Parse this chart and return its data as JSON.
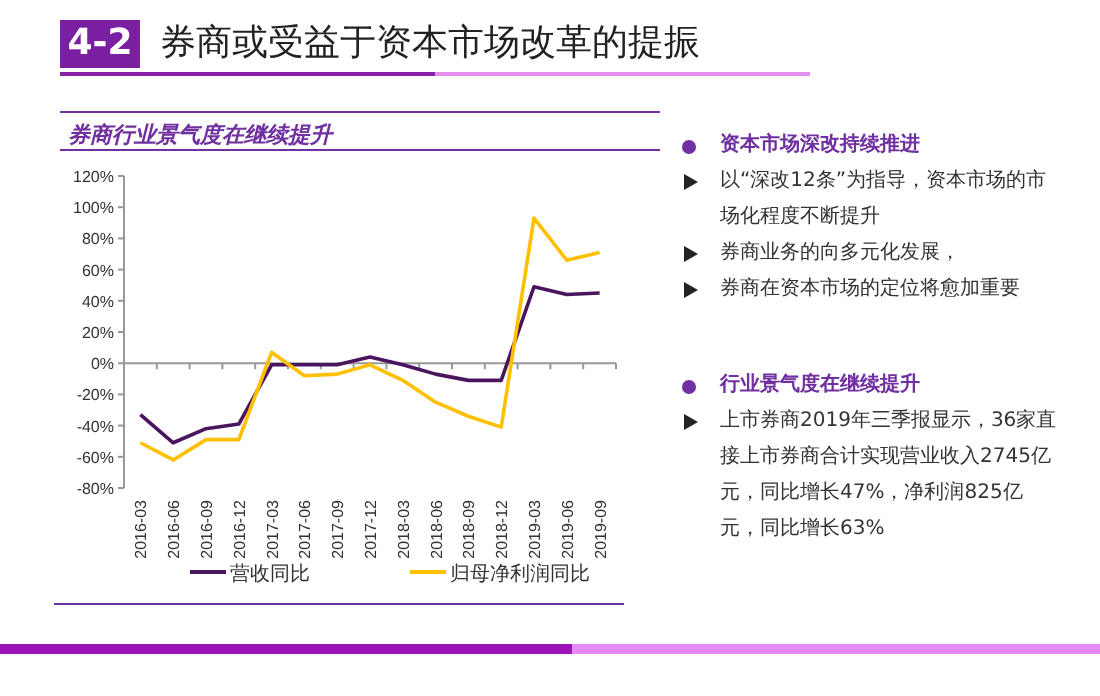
{
  "chart_data": [
    {
      "type": "other",
      "title": "券商或受益于资本市场改革的提振",
      "annotations": [
        "4-2"
      ]
    },
    {
      "type": "line",
      "title": "券商行业景气度在继续提升",
      "categories": [
        "2016-03",
        "2016-06",
        "2016-09",
        "2016-12",
        "2017-03",
        "2017-06",
        "2017-09",
        "2017-12",
        "2018-03",
        "2018-06",
        "2018-09",
        "2018-12",
        "2019-03",
        "2019-06",
        "2019-09"
      ],
      "series": [
        {
          "name": "营收同比",
          "color": "#4b145f",
          "values": [
            -33,
            -51,
            -42,
            -39,
            -1,
            -1,
            -1,
            4,
            -1,
            -7,
            -11,
            -11,
            49,
            44,
            45
          ]
        },
        {
          "name": "归母净利润同比",
          "color": "#ffc000",
          "values": [
            -51,
            -62,
            -49,
            -49,
            7,
            -8,
            -7,
            -1,
            -11,
            -25,
            -34,
            -41,
            93,
            66,
            71
          ]
        }
      ],
      "ylim": [
        -80,
        120
      ],
      "yticks": [
        {
          "value": -80,
          "label": "-80%"
        },
        {
          "value": -60,
          "label": "-60%"
        },
        {
          "value": -40,
          "label": "-40%"
        },
        {
          "value": -20,
          "label": "-20%"
        },
        {
          "value": 0,
          "label": "0%"
        },
        {
          "value": 20,
          "label": "20%"
        },
        {
          "value": 40,
          "label": "40%"
        },
        {
          "value": 60,
          "label": "60%"
        },
        {
          "value": 80,
          "label": "80%"
        },
        {
          "value": 100,
          "label": "100%"
        },
        {
          "value": 120,
          "label": "120%"
        }
      ],
      "legend": "bottom",
      "marker": "none",
      "line_style": "solid"
    },
    {
      "type": "other",
      "title": "资本市场深改持续推进",
      "annotations": [
        "以“深改12条”为指导，资本市场的市场化程度不断提升",
        "券商业务的向多元化发展，",
        "券商在资本市场的定位将愈加重要"
      ]
    },
    {
      "type": "other",
      "title": "行业景气度在继续提升",
      "annotations": [
        "上市券商2019年三季报显示，36家直接上市券商合计实现营业收入2745亿元，同比增长47%，净利润825亿元，同比增长63%"
      ]
    }
  ]
}
